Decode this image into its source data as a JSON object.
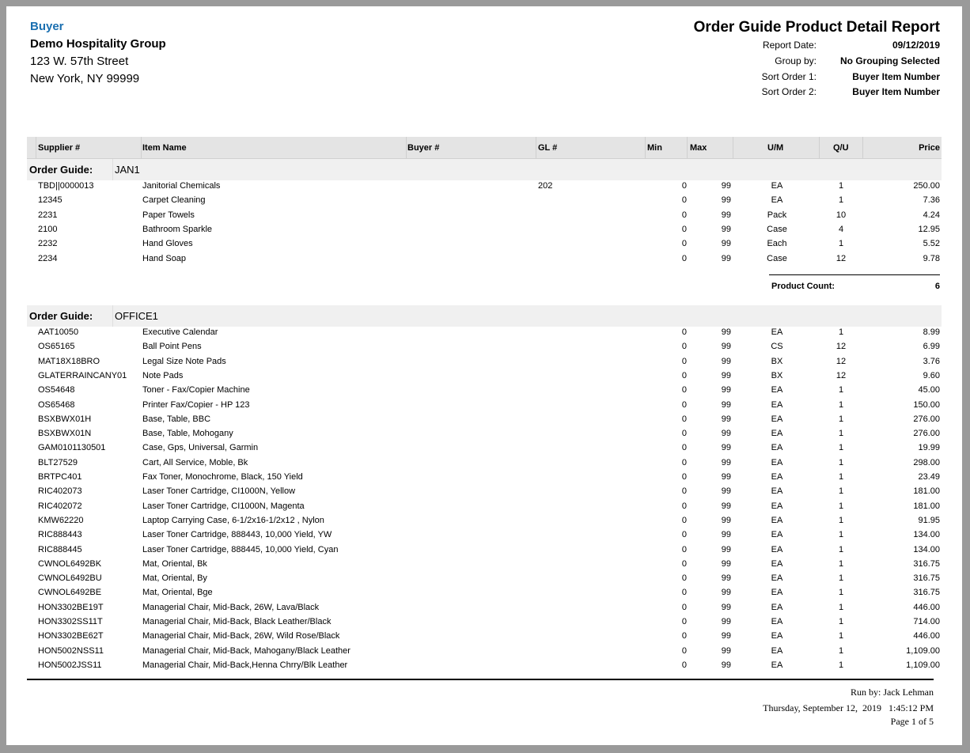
{
  "buyer": {
    "label": "Buyer",
    "company": "Demo Hospitality Group",
    "address1": "123 W. 57th Street",
    "address2": "New York, NY 99999"
  },
  "report": {
    "title": "Order Guide Product Detail Report",
    "meta": [
      {
        "label": "Report Date:",
        "value": "09/12/2019"
      },
      {
        "label": "Group by:",
        "value": "No Grouping Selected"
      },
      {
        "label": "Sort Order 1:",
        "value": "Buyer Item Number"
      },
      {
        "label": "Sort Order 2:",
        "value": "Buyer Item Number"
      }
    ]
  },
  "columns": {
    "supplier": "Supplier #",
    "item": "Item Name",
    "buyer": "Buyer #",
    "gl": "GL #",
    "min": "Min",
    "max": "Max",
    "um": "U/M",
    "qu": "Q/U",
    "price": "Price"
  },
  "group_label": "Order Guide:",
  "product_count_label": "Product Count:",
  "groups": [
    {
      "name": "JAN1",
      "product_count": "6",
      "rows": [
        [
          "TBD||0000013",
          "Janitorial Chemicals",
          "202",
          "0",
          "99",
          "EA",
          "1",
          "250.00"
        ],
        [
          "12345",
          "Carpet Cleaning",
          "",
          "0",
          "99",
          "EA",
          "1",
          "7.36"
        ],
        [
          "2231",
          "Paper Towels",
          "",
          "0",
          "99",
          "Pack",
          "10",
          "4.24"
        ],
        [
          "2100",
          "Bathroom Sparkle",
          "",
          "0",
          "99",
          "Case",
          "4",
          "12.95"
        ],
        [
          "2232",
          "Hand Gloves",
          "",
          "0",
          "99",
          "Each",
          "1",
          "5.52"
        ],
        [
          "2234",
          "Hand Soap",
          "",
          "0",
          "99",
          "Case",
          "12",
          "9.78"
        ]
      ]
    },
    {
      "name": "OFFICE1",
      "rows": [
        [
          "AAT10050",
          "Executive Calendar",
          "",
          "0",
          "99",
          "EA",
          "1",
          "8.99"
        ],
        [
          "OS65165",
          "Ball Point Pens",
          "",
          "0",
          "99",
          "CS",
          "12",
          "6.99"
        ],
        [
          "MAT18X18BRO",
          "Legal Size Note Pads",
          "",
          "0",
          "99",
          "BX",
          "12",
          "3.76"
        ],
        [
          "GLATERRAINCANY01",
          "Note Pads",
          "",
          "0",
          "99",
          "BX",
          "12",
          "9.60"
        ],
        [
          "OS54648",
          "Toner - Fax/Copier Machine",
          "",
          "0",
          "99",
          "EA",
          "1",
          "45.00"
        ],
        [
          "OS65468",
          "Printer Fax/Copier - HP 123",
          "",
          "0",
          "99",
          "EA",
          "1",
          "150.00"
        ],
        [
          "BSXBWX01H",
          "Base, Table, BBC",
          "",
          "0",
          "99",
          "EA",
          "1",
          "276.00"
        ],
        [
          "BSXBWX01N",
          "Base, Table, Mohogany",
          "",
          "0",
          "99",
          "EA",
          "1",
          "276.00"
        ],
        [
          "GAM0101130501",
          "Case, Gps, Universal, Garmin",
          "",
          "0",
          "99",
          "EA",
          "1",
          "19.99"
        ],
        [
          "BLT27529",
          "Cart, All Service, Moble, Bk",
          "",
          "0",
          "99",
          "EA",
          "1",
          "298.00"
        ],
        [
          "BRTPC401",
          "Fax Toner, Monochrome, Black, 150 Yield",
          "",
          "0",
          "99",
          "EA",
          "1",
          "23.49"
        ],
        [
          "RIC402073",
          "Laser Toner Cartridge, CI1000N, Yellow",
          "",
          "0",
          "99",
          "EA",
          "1",
          "181.00"
        ],
        [
          "RIC402072",
          "Laser Toner Cartridge, CI1000N, Magenta",
          "",
          "0",
          "99",
          "EA",
          "1",
          "181.00"
        ],
        [
          "KMW62220",
          "Laptop Carrying Case, 6-1/2x16-1/2x12 , Nylon",
          "",
          "0",
          "99",
          "EA",
          "1",
          "91.95"
        ],
        [
          "RIC888443",
          "Laser Toner Cartridge, 888443, 10,000 Yield, YW",
          "",
          "0",
          "99",
          "EA",
          "1",
          "134.00"
        ],
        [
          "RIC888445",
          "Laser Toner Cartridge, 888445, 10,000 Yield, Cyan",
          "",
          "0",
          "99",
          "EA",
          "1",
          "134.00"
        ],
        [
          "CWNOL6492BK",
          "Mat, Oriental, Bk",
          "",
          "0",
          "99",
          "EA",
          "1",
          "316.75"
        ],
        [
          "CWNOL6492BU",
          "Mat, Oriental, By",
          "",
          "0",
          "99",
          "EA",
          "1",
          "316.75"
        ],
        [
          "CWNOL6492BE",
          "Mat, Oriental, Bge",
          "",
          "0",
          "99",
          "EA",
          "1",
          "316.75"
        ],
        [
          "HON3302BE19T",
          "Managerial Chair, Mid-Back, 26W, Lava/Black",
          "",
          "0",
          "99",
          "EA",
          "1",
          "446.00"
        ],
        [
          "HON3302SS11T",
          "Managerial Chair, Mid-Back, Black Leather/Black",
          "",
          "0",
          "99",
          "EA",
          "1",
          "714.00"
        ],
        [
          "HON3302BE62T",
          "Managerial Chair, Mid-Back, 26W, Wild Rose/Black",
          "",
          "0",
          "99",
          "EA",
          "1",
          "446.00"
        ],
        [
          "HON5002NSS11",
          "Managerial Chair, Mid-Back, Mahogany/Black Leather",
          "",
          "0",
          "99",
          "EA",
          "1",
          "1,109.00"
        ],
        [
          "HON5002JSS11",
          "Managerial Chair, Mid-Back,Henna Chrry/Blk Leather",
          "",
          "0",
          "99",
          "EA",
          "1",
          "1,109.00"
        ]
      ]
    }
  ],
  "footer": {
    "run_by": "Run by: Jack Lehman",
    "timestamp": "Thursday, September 12,  2019   1:45:12 PM",
    "page": "Page 1 of 5"
  }
}
